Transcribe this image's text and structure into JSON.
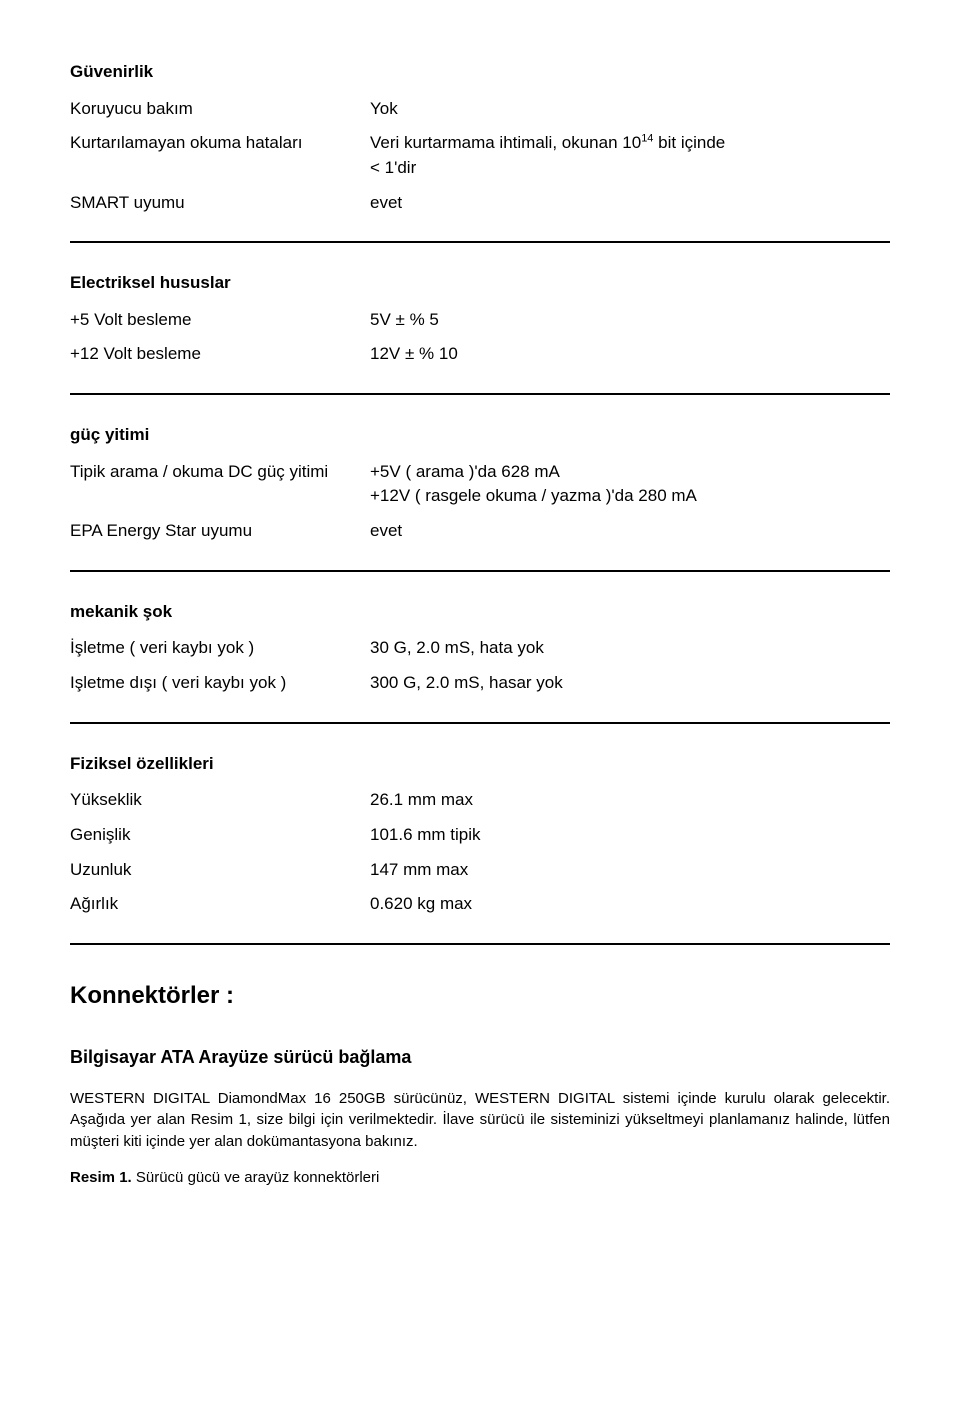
{
  "sections": {
    "reliability": {
      "heading": "Güvenirlik",
      "rows": {
        "maintenance": {
          "label": "Koruyucu bakım",
          "value": "Yok"
        },
        "errors": {
          "label": "Kurtarılamayan okuma hataları",
          "value_line1": "Veri kurtarmama ihtimali, okunan 10",
          "value_sup": "14",
          "value_line1_after": " bit içinde",
          "value_line2": "< 1'dir"
        },
        "smart": {
          "label": "SMART uyumu",
          "value": "evet"
        }
      }
    },
    "electrical": {
      "heading": "Electriksel hususlar",
      "rows": {
        "v5": {
          "label": "+5 Volt besleme",
          "value": "5V ± % 5"
        },
        "v12": {
          "label": "+12 Volt besleme",
          "value": "12V ± % 10"
        }
      }
    },
    "power": {
      "heading": "güç yitimi",
      "rows": {
        "typical": {
          "label": "Tipik arama / okuma DC güç yitimi",
          "value_line1": "+5V ( arama )'da 628 mA",
          "value_line2": "+12V ( rasgele okuma / yazma )'da 280 mA"
        },
        "epa": {
          "label": "EPA Energy Star uyumu",
          "value": "evet"
        }
      }
    },
    "shock": {
      "heading": "mekanik şok",
      "rows": {
        "operating": {
          "label": "İşletme  ( veri kaybı yok )",
          "value": "30 G, 2.0 mS, hata yok"
        },
        "nonoperating": {
          "label": "Işletme dışı ( veri kaybı yok )",
          "value": "300 G, 2.0 mS, hasar yok"
        }
      }
    },
    "physical": {
      "heading": "Fiziksel özellikleri",
      "rows": {
        "height": {
          "label": "Yükseklik",
          "value": "26.1 mm max"
        },
        "width": {
          "label": "Genişlik",
          "value": "101.6 mm tipik"
        },
        "length": {
          "label": "Uzunluk",
          "value": "147 mm max"
        },
        "weight": {
          "label": "Ağırlık",
          "value": "0.620 kg max"
        }
      }
    }
  },
  "connectors": {
    "heading": "Konnektörler :",
    "sub_heading": "Bilgisayar ATA Arayüze sürücü bağlama",
    "paragraph": "WESTERN DIGITAL DiamondMax 16 250GB sürücünüz, WESTERN DIGITAL sistemi içinde kurulu olarak gelecektir. Aşağıda yer alan Resim 1, size bilgi için  verilmektedir. İlave sürücü ile sisteminizi yükseltmeyi planlamanız halinde, lütfen müşteri kiti içinde yer alan dokümantasyona bakınız.",
    "figure_bold": "Resim 1.",
    "figure_rest": " Sürücü gücü ve arayüz konnektörleri"
  }
}
